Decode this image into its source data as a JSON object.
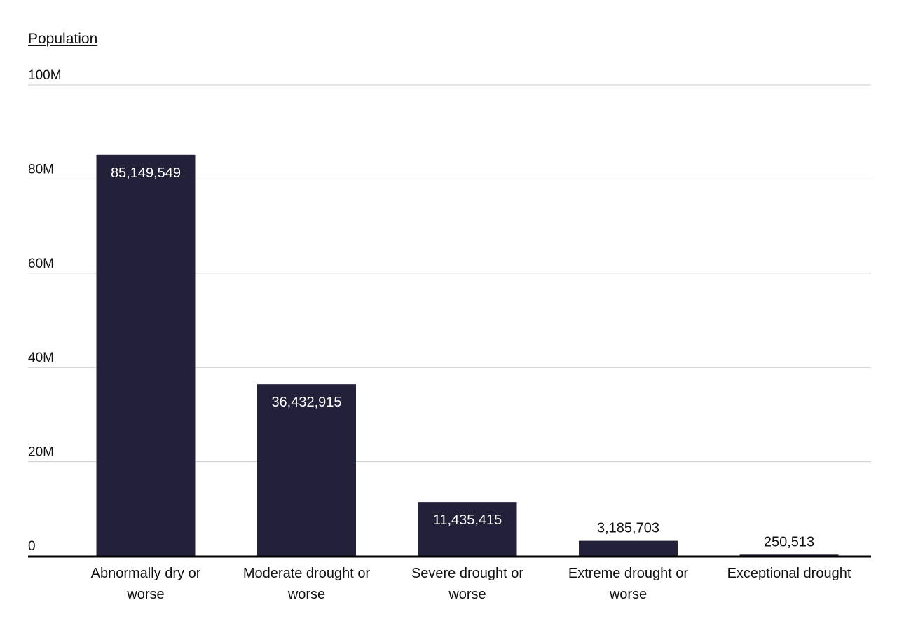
{
  "chart_data": {
    "type": "bar",
    "ylabel": "Population",
    "categories": [
      [
        "Abnormally dry or",
        "worse"
      ],
      [
        "Moderate drought or",
        "worse"
      ],
      [
        "Severe drought or",
        "worse"
      ],
      [
        "Extreme drought or",
        "worse"
      ],
      [
        "Exceptional drought"
      ]
    ],
    "values": [
      85149549,
      36432915,
      11435415,
      3185703,
      250513
    ],
    "data_labels": [
      "85,149,549",
      "36,432,915",
      "11,435,415",
      "3,185,703",
      "250,513"
    ],
    "yticks": [
      0,
      20000000,
      40000000,
      60000000,
      80000000,
      100000000
    ],
    "ytick_labels": [
      "0",
      "20M",
      "40M",
      "60M",
      "80M",
      "100M"
    ],
    "ylim": [
      0,
      100000000
    ],
    "grid": true,
    "bar_color": "#23213a",
    "grid_color": "#cccccc"
  }
}
